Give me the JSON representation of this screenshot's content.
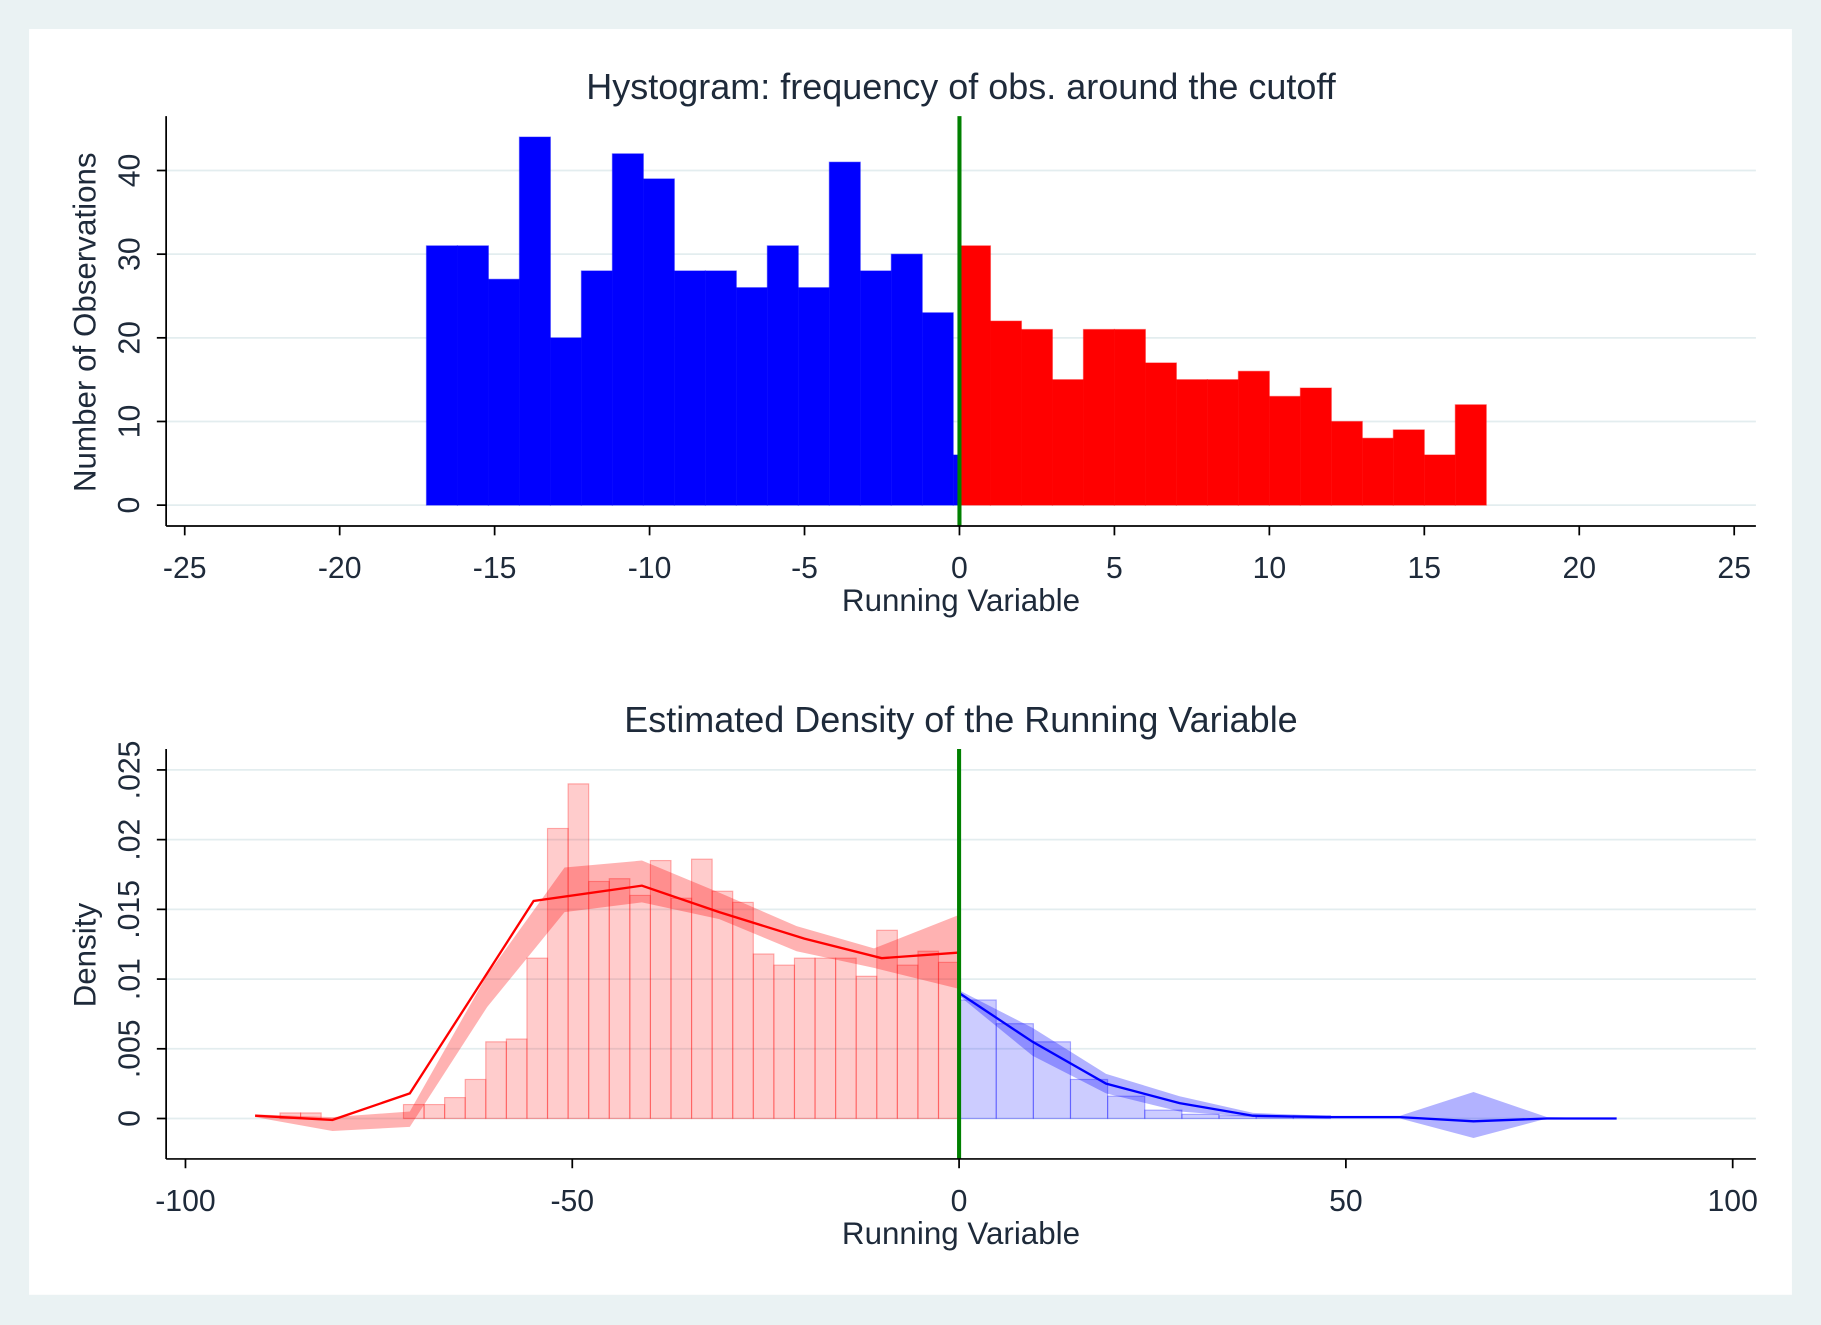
{
  "chart_data": [
    {
      "type": "histogram",
      "title": "Hystogram: frequency of obs. around the cutoff",
      "xlabel": "Running Variable",
      "ylabel": "Number of Observations",
      "xlim": [
        -25.6,
        25.7
      ],
      "xticks": [
        -25,
        -20,
        -15,
        -10,
        -5,
        0,
        5,
        10,
        15,
        20,
        25
      ],
      "ylim": [
        -2.5,
        46.5
      ],
      "yticks": [
        0,
        10,
        20,
        30,
        40
      ],
      "grid": true,
      "cutoff": 0,
      "cutoff_color": "#008000",
      "series": [
        {
          "color": "#0000ff",
          "bins": [
            -17.2,
            -16.2,
            -15.2,
            -14.2,
            -13.2,
            -12.2,
            -11.2,
            -10.2,
            -9.2,
            -8.2,
            -7.2,
            -6.2,
            -5.2,
            -4.2,
            -3.2,
            -2.2,
            -1.2,
            -0.2,
            0
          ],
          "values": [
            31,
            31,
            27,
            44,
            20,
            28,
            42,
            39,
            28,
            28,
            26,
            31,
            26,
            41,
            28,
            30,
            23,
            6
          ]
        },
        {
          "color": "#ff0000",
          "bins": [
            0,
            1,
            2,
            3,
            4,
            5,
            6,
            7,
            8,
            9,
            10,
            11,
            12,
            13,
            14,
            15,
            16,
            17
          ],
          "values": [
            31,
            22,
            21,
            15,
            21,
            21,
            17,
            15,
            15,
            16,
            13,
            14,
            10,
            8,
            9,
            6,
            12
          ]
        }
      ]
    },
    {
      "type": "density",
      "title": "Estimated Density of the Running Variable",
      "xlabel": "Running Variable",
      "ylabel": "Density",
      "xlim": [
        -102.5,
        103
      ],
      "xticks": [
        -100,
        -50,
        0,
        50,
        100
      ],
      "ylim": [
        -0.0029,
        0.0265
      ],
      "yticks": [
        0,
        {
          "value": 0.005,
          "label": ".005"
        },
        {
          "value": 0.01,
          "label": ".01"
        },
        {
          "value": 0.015,
          "label": ".015"
        },
        {
          "value": 0.02,
          "label": ".02"
        },
        {
          "value": 0.025,
          "label": ".025"
        }
      ],
      "grid": true,
      "cutoff": 0,
      "cutoff_color": "#008000",
      "histograms": [
        {
          "color": "#ff0000",
          "bins": [
            -87.78,
            -85.12,
            -82.46,
            -79.8,
            -77.14,
            -74.48,
            -71.82,
            -69.16,
            -66.5,
            -63.84,
            -61.18,
            -58.52,
            -55.86,
            -53.2,
            -50.54,
            -47.88,
            -45.22,
            -42.56,
            -39.9,
            -37.24,
            -34.58,
            -31.92,
            -29.26,
            -26.6,
            -23.94,
            -21.28,
            -18.62,
            -15.96,
            -13.3,
            -10.64,
            -7.98,
            -5.32,
            -2.66,
            0
          ],
          "values": [
            0.0004,
            0.0004,
            0,
            0,
            0,
            0,
            0.001,
            0.001,
            0.0015,
            0.0028,
            0.0055,
            0.0057,
            0.0115,
            0.0208,
            0.024,
            0.017,
            0.0172,
            0.016,
            0.0185,
            0.0158,
            0.0186,
            0.0163,
            0.0155,
            0.0118,
            0.011,
            0.0115,
            0.0115,
            0.0115,
            0.0102,
            0.0135,
            0.011,
            0.012,
            0.0112
          ]
        },
        {
          "color": "#0000ff",
          "bins": [
            0,
            4.8,
            9.6,
            14.4,
            19.2,
            24,
            28.8,
            33.6,
            38.4,
            43.2,
            48
          ],
          "values": [
            0.0085,
            0.0068,
            0.0055,
            0.0028,
            0.0016,
            0.0006,
            0.0003,
            0.0002,
            0.0001,
            0.0002
          ]
        }
      ],
      "bands": [
        {
          "color": "#ff0000",
          "x": [
            -91,
            -81,
            -71,
            -61,
            -51,
            -41,
            -31,
            -21,
            -11,
            0
          ],
          "lower": [
            0.0001,
            -0.0009,
            -0.0006,
            0.008,
            0.0148,
            0.0155,
            0.0143,
            0.012,
            0.0108,
            0.0093
          ],
          "upper": [
            0.0003,
            0.0001,
            0.0005,
            0.0103,
            0.018,
            0.0185,
            0.0162,
            0.0138,
            0.0122,
            0.0146
          ]
        },
        {
          "color": "#0000ff",
          "x": [
            0,
            9.5,
            19,
            28.5,
            38,
            47.5,
            57,
            66.5,
            76,
            85
          ],
          "lower": [
            0.0088,
            0.0045,
            0.0018,
            0.0005,
            0.0001,
            0,
            0,
            -0.0014,
            0,
            0
          ],
          "upper": [
            0.0092,
            0.0065,
            0.0032,
            0.0016,
            0.0004,
            0.0002,
            0.0002,
            0.0019,
            0.0001,
            0
          ]
        }
      ],
      "lines": [
        {
          "color": "#ff0000",
          "x": [
            -91,
            -81,
            -71,
            -55,
            -41,
            -31,
            -20,
            -10,
            0
          ],
          "values": [
            0.0002,
            -0.0001,
            0.0018,
            0.0156,
            0.0167,
            0.0148,
            0.0129,
            0.0115,
            0.0119
          ]
        },
        {
          "color": "#0000ff",
          "x": [
            0,
            9.5,
            19,
            28.5,
            38,
            47.5,
            57,
            66.5,
            76,
            85
          ],
          "values": [
            0.009,
            0.0055,
            0.0025,
            0.0011,
            0.0002,
            0.0001,
            0.0001,
            -0.0002,
            0,
            0
          ]
        }
      ]
    }
  ]
}
